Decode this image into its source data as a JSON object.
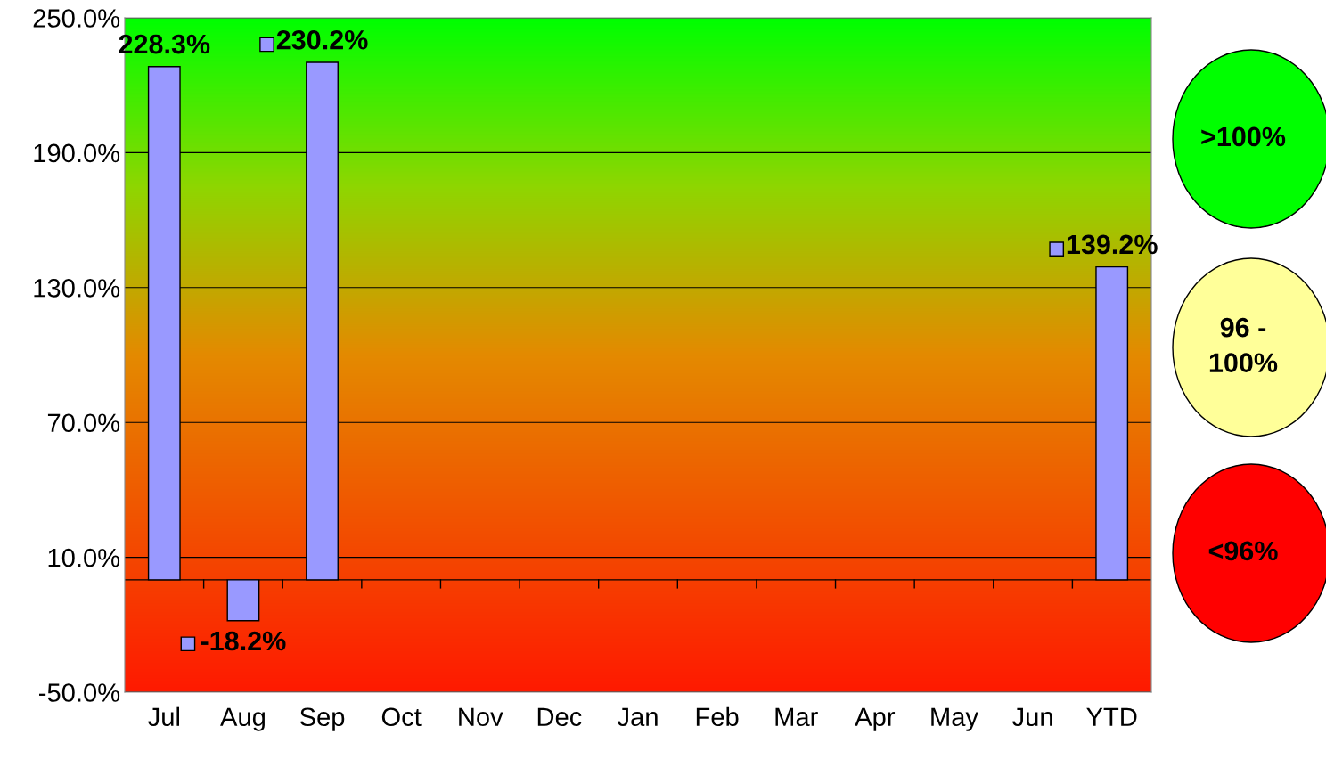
{
  "chart_data": {
    "type": "bar",
    "categories": [
      "Jul",
      "Aug",
      "Sep",
      "Oct",
      "Nov",
      "Dec",
      "Jan",
      "Feb",
      "Mar",
      "Apr",
      "May",
      "Jun",
      "YTD"
    ],
    "values": [
      228.3,
      -18.2,
      230.2,
      null,
      null,
      null,
      null,
      null,
      null,
      null,
      null,
      null,
      139.2
    ],
    "value_labels": [
      "228.3%",
      "-18.2%",
      "230.2%",
      null,
      null,
      null,
      null,
      null,
      null,
      null,
      null,
      null,
      "139.2%"
    ],
    "color": "#9999ff",
    "ylim": [
      -50,
      250
    ],
    "yticks": [
      {
        "value": -50,
        "label": "-50.0%"
      },
      {
        "value": 10,
        "label": "10.0%"
      },
      {
        "value": 70,
        "label": "70.0%"
      },
      {
        "value": 130,
        "label": "130.0%"
      },
      {
        "value": 190,
        "label": "190.0%"
      },
      {
        "value": 250,
        "label": "250.0%"
      }
    ],
    "grid": "y",
    "annotations": [
      ">100%",
      "96 - 100%",
      "<96%"
    ]
  }
}
